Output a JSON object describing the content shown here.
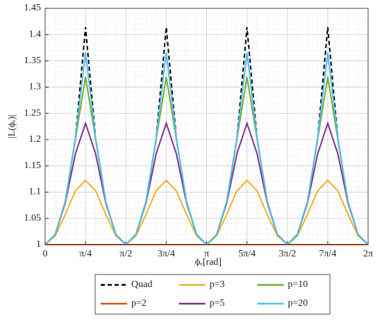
{
  "chart_data": {
    "type": "line",
    "ylabel": "|L(ϕₑ)|",
    "xlabel": "ϕₑ[rad]",
    "x": [
      0,
      0.19635,
      0.3927,
      0.58905,
      0.7854,
      0.98175,
      1.1781,
      1.37445,
      1.5708,
      1.76715,
      1.9635,
      2.15985,
      2.35619,
      2.55254,
      2.74889,
      2.94524,
      3.14159,
      3.33794,
      3.53429,
      3.73064,
      3.92699,
      4.12334,
      4.31969,
      4.51604,
      4.71239,
      4.90874,
      5.10509,
      5.30144,
      5.49779,
      5.69414,
      5.89049,
      6.08684,
      6.28319
    ],
    "series": [
      {
        "name": "Quad",
        "color": "#000000",
        "dashed": true,
        "values": [
          1,
          1.0196,
          1.0824,
          1.2027,
          1.4142,
          1.2027,
          1.0824,
          1.0196,
          1,
          1.0196,
          1.0824,
          1.2027,
          1.4142,
          1.2027,
          1.0824,
          1.0196,
          1,
          1.0196,
          1.0824,
          1.2027,
          1.4142,
          1.2027,
          1.0824,
          1.0196,
          1,
          1.0196,
          1.0824,
          1.2027,
          1.4142,
          1.2027,
          1.0824,
          1.0196,
          1
        ]
      },
      {
        "name": "p=2",
        "color": "#D95319",
        "values": [
          1,
          1,
          1,
          1,
          1,
          1,
          1,
          1,
          1,
          1,
          1,
          1,
          1,
          1,
          1,
          1,
          1,
          1,
          1,
          1,
          1,
          1,
          1,
          1,
          1,
          1,
          1,
          1,
          1,
          1,
          1,
          1,
          1
        ]
      },
      {
        "name": "p=3",
        "color": "#EDB120",
        "values": [
          1,
          1.0169,
          1.0579,
          1.1024,
          1.1225,
          1.1024,
          1.0579,
          1.0169,
          1,
          1.0169,
          1.0579,
          1.1024,
          1.1225,
          1.1024,
          1.0579,
          1.0169,
          1,
          1.0169,
          1.0579,
          1.1024,
          1.1225,
          1.1024,
          1.0579,
          1.0169,
          1,
          1.0169,
          1.0579,
          1.1024,
          1.1225,
          1.1024,
          1.0579,
          1.0169,
          1
        ]
      },
      {
        "name": "p=5",
        "color": "#7E2F8E",
        "values": [
          1,
          1.0195,
          1.0798,
          1.173,
          1.2311,
          1.173,
          1.0798,
          1.0195,
          1,
          1.0195,
          1.0798,
          1.173,
          1.2311,
          1.173,
          1.0798,
          1.0195,
          1,
          1.0195,
          1.0798,
          1.173,
          1.2311,
          1.173,
          1.0798,
          1.0195,
          1,
          1.0195,
          1.0798,
          1.173,
          1.2311,
          1.173,
          1.0798,
          1.0195,
          1
        ]
      },
      {
        "name": "p=10",
        "color": "#77AC30",
        "values": [
          1,
          1.0196,
          1.0824,
          1.2006,
          1.3195,
          1.2006,
          1.0824,
          1.0196,
          1,
          1.0196,
          1.0824,
          1.2006,
          1.3195,
          1.2006,
          1.0824,
          1.0196,
          1,
          1.0196,
          1.0824,
          1.2006,
          1.3195,
          1.2006,
          1.0824,
          1.0196,
          1,
          1.0196,
          1.0824,
          1.2006,
          1.3195,
          1.2006,
          1.0824,
          1.0196,
          1
        ]
      },
      {
        "name": "p=20",
        "color": "#4DBEEE",
        "values": [
          1,
          1.0196,
          1.0824,
          1.2027,
          1.366,
          1.2027,
          1.0824,
          1.0196,
          1,
          1.0196,
          1.0824,
          1.2027,
          1.366,
          1.2027,
          1.0824,
          1.0196,
          1,
          1.0196,
          1.0824,
          1.2027,
          1.366,
          1.2027,
          1.0824,
          1.0196,
          1,
          1.0196,
          1.0824,
          1.2027,
          1.366,
          1.2027,
          1.0824,
          1.0196,
          1
        ]
      }
    ],
    "xlim": [
      0,
      6.28319
    ],
    "xticks": [
      0,
      {
        "value": 0.7854,
        "label": "π/4"
      },
      {
        "value": 1.5708,
        "label": "π/2"
      },
      {
        "value": 2.35619,
        "label": "3π/4"
      },
      {
        "value": 3.14159,
        "label": "π"
      },
      {
        "value": 3.92699,
        "label": "5π/4"
      },
      {
        "value": 4.71239,
        "label": "3π/2"
      },
      {
        "value": 5.49779,
        "label": "7π/4"
      },
      {
        "value": 6.28319,
        "label": "2π"
      }
    ],
    "ylim": [
      1,
      1.45
    ],
    "yticks": [
      1,
      1.05,
      1.1,
      1.15,
      1.2,
      1.25,
      1.3,
      1.35,
      1.4,
      1.45
    ],
    "grid": true,
    "legend": "bottom"
  }
}
